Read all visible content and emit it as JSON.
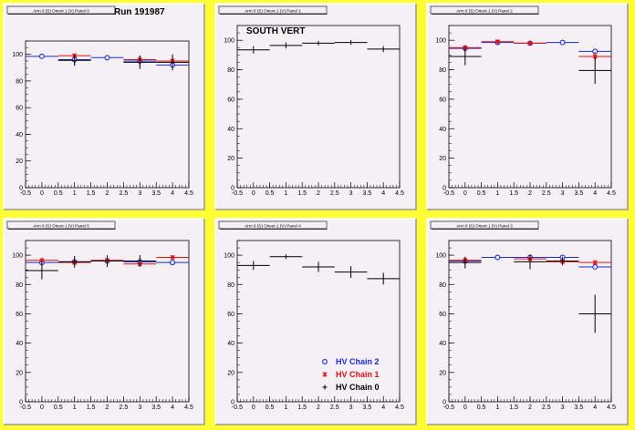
{
  "page": {
    "run_label": "Run 191987",
    "region_label": "SOUTH VERT"
  },
  "legend": [
    {
      "name": "HV Chain 2",
      "color": "#1a2bd6",
      "marker": "circle"
    },
    {
      "name": "HV Chain 1",
      "color": "#e01010",
      "marker": "star"
    },
    {
      "name": "HV Chain 0",
      "color": "#000000",
      "marker": "plus"
    }
  ],
  "chart_data": [
    {
      "type": "scatter",
      "title": "Arm 0 (S) Orient 1 (V) Panel 0",
      "xlim": [
        -0.5,
        4.5
      ],
      "ylim": [
        0,
        110
      ],
      "xticks": [
        "-0.5",
        "0",
        "0.5",
        "1",
        "1.5",
        "2",
        "2.5",
        "3",
        "3.5",
        "4",
        "4.5"
      ],
      "yticks": [
        "0",
        "20",
        "40",
        "60",
        "80",
        "100"
      ],
      "series": [
        {
          "name": "HV Chain 2",
          "points": [
            {
              "x": 0,
              "y": 98.5,
              "err": 0.6
            },
            {
              "x": 1,
              "y": 96,
              "err": 4.5
            },
            {
              "x": 2,
              "y": 97.5,
              "err": 0.8
            },
            {
              "x": 3,
              "y": 95,
              "err": 4
            },
            {
              "x": 4,
              "y": 92,
              "err": 1
            }
          ]
        },
        {
          "name": "HV Chain 1",
          "points": [
            {
              "x": 1,
              "y": 99,
              "err": 1
            },
            {
              "x": 3,
              "y": 96,
              "err": 3
            },
            {
              "x": 4,
              "y": 95,
              "err": 3
            }
          ]
        },
        {
          "name": "HV Chain 0",
          "points": [
            {
              "x": 1,
              "y": 95.5,
              "err": 4
            },
            {
              "x": 3,
              "y": 94,
              "err": 5
            },
            {
              "x": 4,
              "y": 94,
              "err": 6
            }
          ]
        }
      ]
    },
    {
      "type": "scatter",
      "title": "Arm 0 (S) Orient 1 (V) Panel 1",
      "xlim": [
        -0.5,
        4.5
      ],
      "ylim": [
        0,
        110
      ],
      "xticks": [
        "-0.5",
        "0",
        "0.5",
        "1",
        "1.5",
        "2",
        "2.5",
        "3",
        "3.5",
        "4",
        "4.5"
      ],
      "yticks": [
        "0",
        "20",
        "40",
        "60",
        "80",
        "100"
      ],
      "series": [
        {
          "name": "HV Chain 0",
          "points": [
            {
              "x": 0,
              "y": 93.5,
              "err": 2.5
            },
            {
              "x": 1,
              "y": 96.5,
              "err": 2
            },
            {
              "x": 2,
              "y": 98,
              "err": 1.5
            },
            {
              "x": 3,
              "y": 98.5,
              "err": 1.5
            },
            {
              "x": 4,
              "y": 94,
              "err": 2
            }
          ]
        }
      ]
    },
    {
      "type": "scatter",
      "title": "Arm 0 (S) Orient 1 (V) Panel 2",
      "xlim": [
        -0.5,
        4.5
      ],
      "ylim": [
        0,
        110
      ],
      "xticks": [
        "-0.5",
        "0",
        "0.5",
        "1",
        "1.5",
        "2",
        "2.5",
        "3",
        "3.5",
        "4",
        "4.5"
      ],
      "yticks": [
        "0",
        "20",
        "40",
        "60",
        "80",
        "100"
      ],
      "series": [
        {
          "name": "HV Chain 2",
          "points": [
            {
              "x": 0,
              "y": 94.5,
              "err": 2
            },
            {
              "x": 1,
              "y": 98.5,
              "err": 1
            },
            {
              "x": 2,
              "y": 98,
              "err": 1
            },
            {
              "x": 3,
              "y": 98.5,
              "err": 0.5
            },
            {
              "x": 4,
              "y": 92.5,
              "err": 1
            }
          ]
        },
        {
          "name": "HV Chain 1",
          "points": [
            {
              "x": 0,
              "y": 95,
              "err": 1.5
            },
            {
              "x": 1,
              "y": 99,
              "err": 0.8
            },
            {
              "x": 2,
              "y": 98,
              "err": 0.8
            },
            {
              "x": 4,
              "y": 89,
              "err": 3
            }
          ]
        },
        {
          "name": "HV Chain 0",
          "points": [
            {
              "x": 0,
              "y": 89,
              "err": 6
            },
            {
              "x": 4,
              "y": 79.5,
              "err": 9
            }
          ]
        }
      ]
    },
    {
      "type": "scatter",
      "title": "Arm 0 (S) Orient 1 (V) Panel 5",
      "xlim": [
        -0.5,
        4.5
      ],
      "ylim": [
        0,
        110
      ],
      "xticks": [
        "-0.5",
        "0",
        "0.5",
        "1",
        "1.5",
        "2",
        "2.5",
        "3",
        "3.5",
        "4",
        "4.5"
      ],
      "yticks": [
        "0",
        "20",
        "40",
        "60",
        "80",
        "100"
      ],
      "series": [
        {
          "name": "HV Chain 2",
          "points": [
            {
              "x": 0,
              "y": 95,
              "err": 2
            },
            {
              "x": 1,
              "y": 95.5,
              "err": 1
            },
            {
              "x": 2,
              "y": 96,
              "err": 1
            },
            {
              "x": 3,
              "y": 95.5,
              "err": 1
            },
            {
              "x": 4,
              "y": 95,
              "err": 0.8
            }
          ]
        },
        {
          "name": "HV Chain 1",
          "points": [
            {
              "x": 0,
              "y": 96.5,
              "err": 1.5
            },
            {
              "x": 1,
              "y": 95,
              "err": 1
            },
            {
              "x": 2,
              "y": 96.5,
              "err": 1
            },
            {
              "x": 3,
              "y": 94,
              "err": 1
            },
            {
              "x": 4,
              "y": 98.5,
              "err": 1
            }
          ]
        },
        {
          "name": "HV Chain 0",
          "points": [
            {
              "x": 0,
              "y": 89.5,
              "err": 6
            },
            {
              "x": 1,
              "y": 95.5,
              "err": 4
            },
            {
              "x": 2,
              "y": 96,
              "err": 4
            },
            {
              "x": 3,
              "y": 96,
              "err": 4
            }
          ]
        }
      ]
    },
    {
      "type": "scatter",
      "title": "Arm 0 (S) Orient 1 (V) Panel 4",
      "xlim": [
        -0.5,
        4.5
      ],
      "ylim": [
        0,
        110
      ],
      "xticks": [
        "-0.5",
        "0",
        "0.5",
        "1",
        "1.5",
        "2",
        "2.5",
        "3",
        "3.5",
        "4",
        "4.5"
      ],
      "yticks": [
        "0",
        "20",
        "40",
        "60",
        "80",
        "100"
      ],
      "series": [
        {
          "name": "HV Chain 0",
          "points": [
            {
              "x": 0,
              "y": 93,
              "err": 3
            },
            {
              "x": 1,
              "y": 99,
              "err": 1.5
            },
            {
              "x": 2,
              "y": 92,
              "err": 3.5
            },
            {
              "x": 3,
              "y": 88.5,
              "err": 4
            },
            {
              "x": 4,
              "y": 84,
              "err": 4
            }
          ]
        }
      ]
    },
    {
      "type": "scatter",
      "title": "Arm 0 (S) Orient 1 (V) Panel 3",
      "xlim": [
        -0.5,
        4.5
      ],
      "ylim": [
        0,
        110
      ],
      "xticks": [
        "-0.5",
        "0",
        "0.5",
        "1",
        "1.5",
        "2",
        "2.5",
        "3",
        "3.5",
        "4",
        "4.5"
      ],
      "yticks": [
        "0",
        "20",
        "40",
        "60",
        "80",
        "100"
      ],
      "series": [
        {
          "name": "HV Chain 2",
          "points": [
            {
              "x": 0,
              "y": 96,
              "err": 1.5
            },
            {
              "x": 1,
              "y": 98.5,
              "err": 0.5
            },
            {
              "x": 2,
              "y": 98.5,
              "err": 0.5
            },
            {
              "x": 3,
              "y": 98.5,
              "err": 0.5
            },
            {
              "x": 4,
              "y": 92,
              "err": 1
            }
          ]
        },
        {
          "name": "HV Chain 1",
          "points": [
            {
              "x": 0,
              "y": 96.5,
              "err": 1.5
            },
            {
              "x": 2,
              "y": 97.5,
              "err": 1
            },
            {
              "x": 3,
              "y": 95.5,
              "err": 1
            },
            {
              "x": 4,
              "y": 95,
              "err": 1
            }
          ]
        },
        {
          "name": "HV Chain 0",
          "points": [
            {
              "x": 0,
              "y": 95,
              "err": 4
            },
            {
              "x": 2,
              "y": 95.5,
              "err": 5
            },
            {
              "x": 3,
              "y": 96,
              "err": 3
            },
            {
              "x": 4,
              "y": 60,
              "err": 13
            }
          ]
        }
      ]
    }
  ]
}
